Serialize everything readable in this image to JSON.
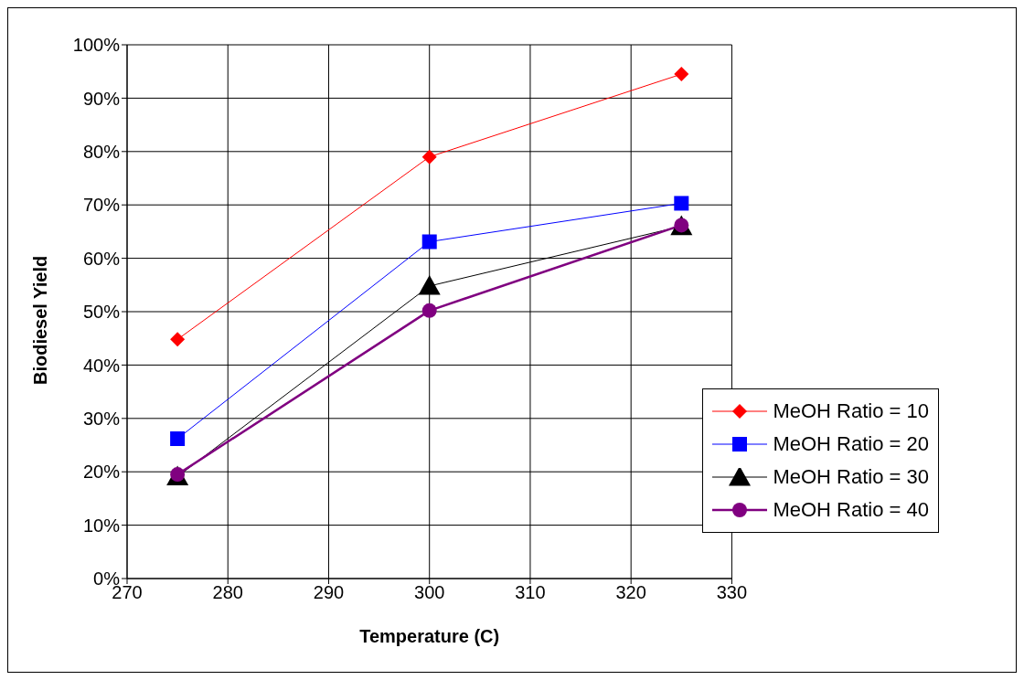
{
  "chart_data": {
    "type": "line",
    "xlabel": "Temperature (C)",
    "ylabel": "Biodiesel Yield",
    "x": [
      275,
      300,
      325
    ],
    "series": [
      {
        "name": "MeOH Ratio = 10",
        "color": "#ff0000",
        "marker": "diamond",
        "values": [
          44.8,
          79.0,
          94.5
        ]
      },
      {
        "name": "MeOH Ratio = 20",
        "color": "#0000ff",
        "marker": "square",
        "values": [
          26.2,
          63.1,
          70.3
        ]
      },
      {
        "name": "MeOH Ratio = 30",
        "color": "#000000",
        "marker": "triangle",
        "values": [
          19.1,
          54.8,
          66.0
        ]
      },
      {
        "name": "MeOH Ratio = 40",
        "color": "#800080",
        "marker": "circle",
        "values": [
          19.5,
          50.2,
          66.2
        ]
      }
    ],
    "xlim": [
      270,
      330
    ],
    "xticks": [
      270,
      280,
      290,
      300,
      310,
      320,
      330
    ],
    "ylim": [
      0,
      100
    ],
    "yticks": [
      {
        "value": 0,
        "label": "0%"
      },
      {
        "value": 10,
        "label": "10%"
      },
      {
        "value": 20,
        "label": "20%"
      },
      {
        "value": 30,
        "label": "30%"
      },
      {
        "value": 40,
        "label": "40%"
      },
      {
        "value": 50,
        "label": "50%"
      },
      {
        "value": 60,
        "label": "60%"
      },
      {
        "value": 70,
        "label": "70%"
      },
      {
        "value": 80,
        "label": "80%"
      },
      {
        "value": 90,
        "label": "90%"
      },
      {
        "value": 100,
        "label": "100%"
      }
    ],
    "grid": true,
    "legend": "bottom right",
    "line_style": "solid"
  }
}
